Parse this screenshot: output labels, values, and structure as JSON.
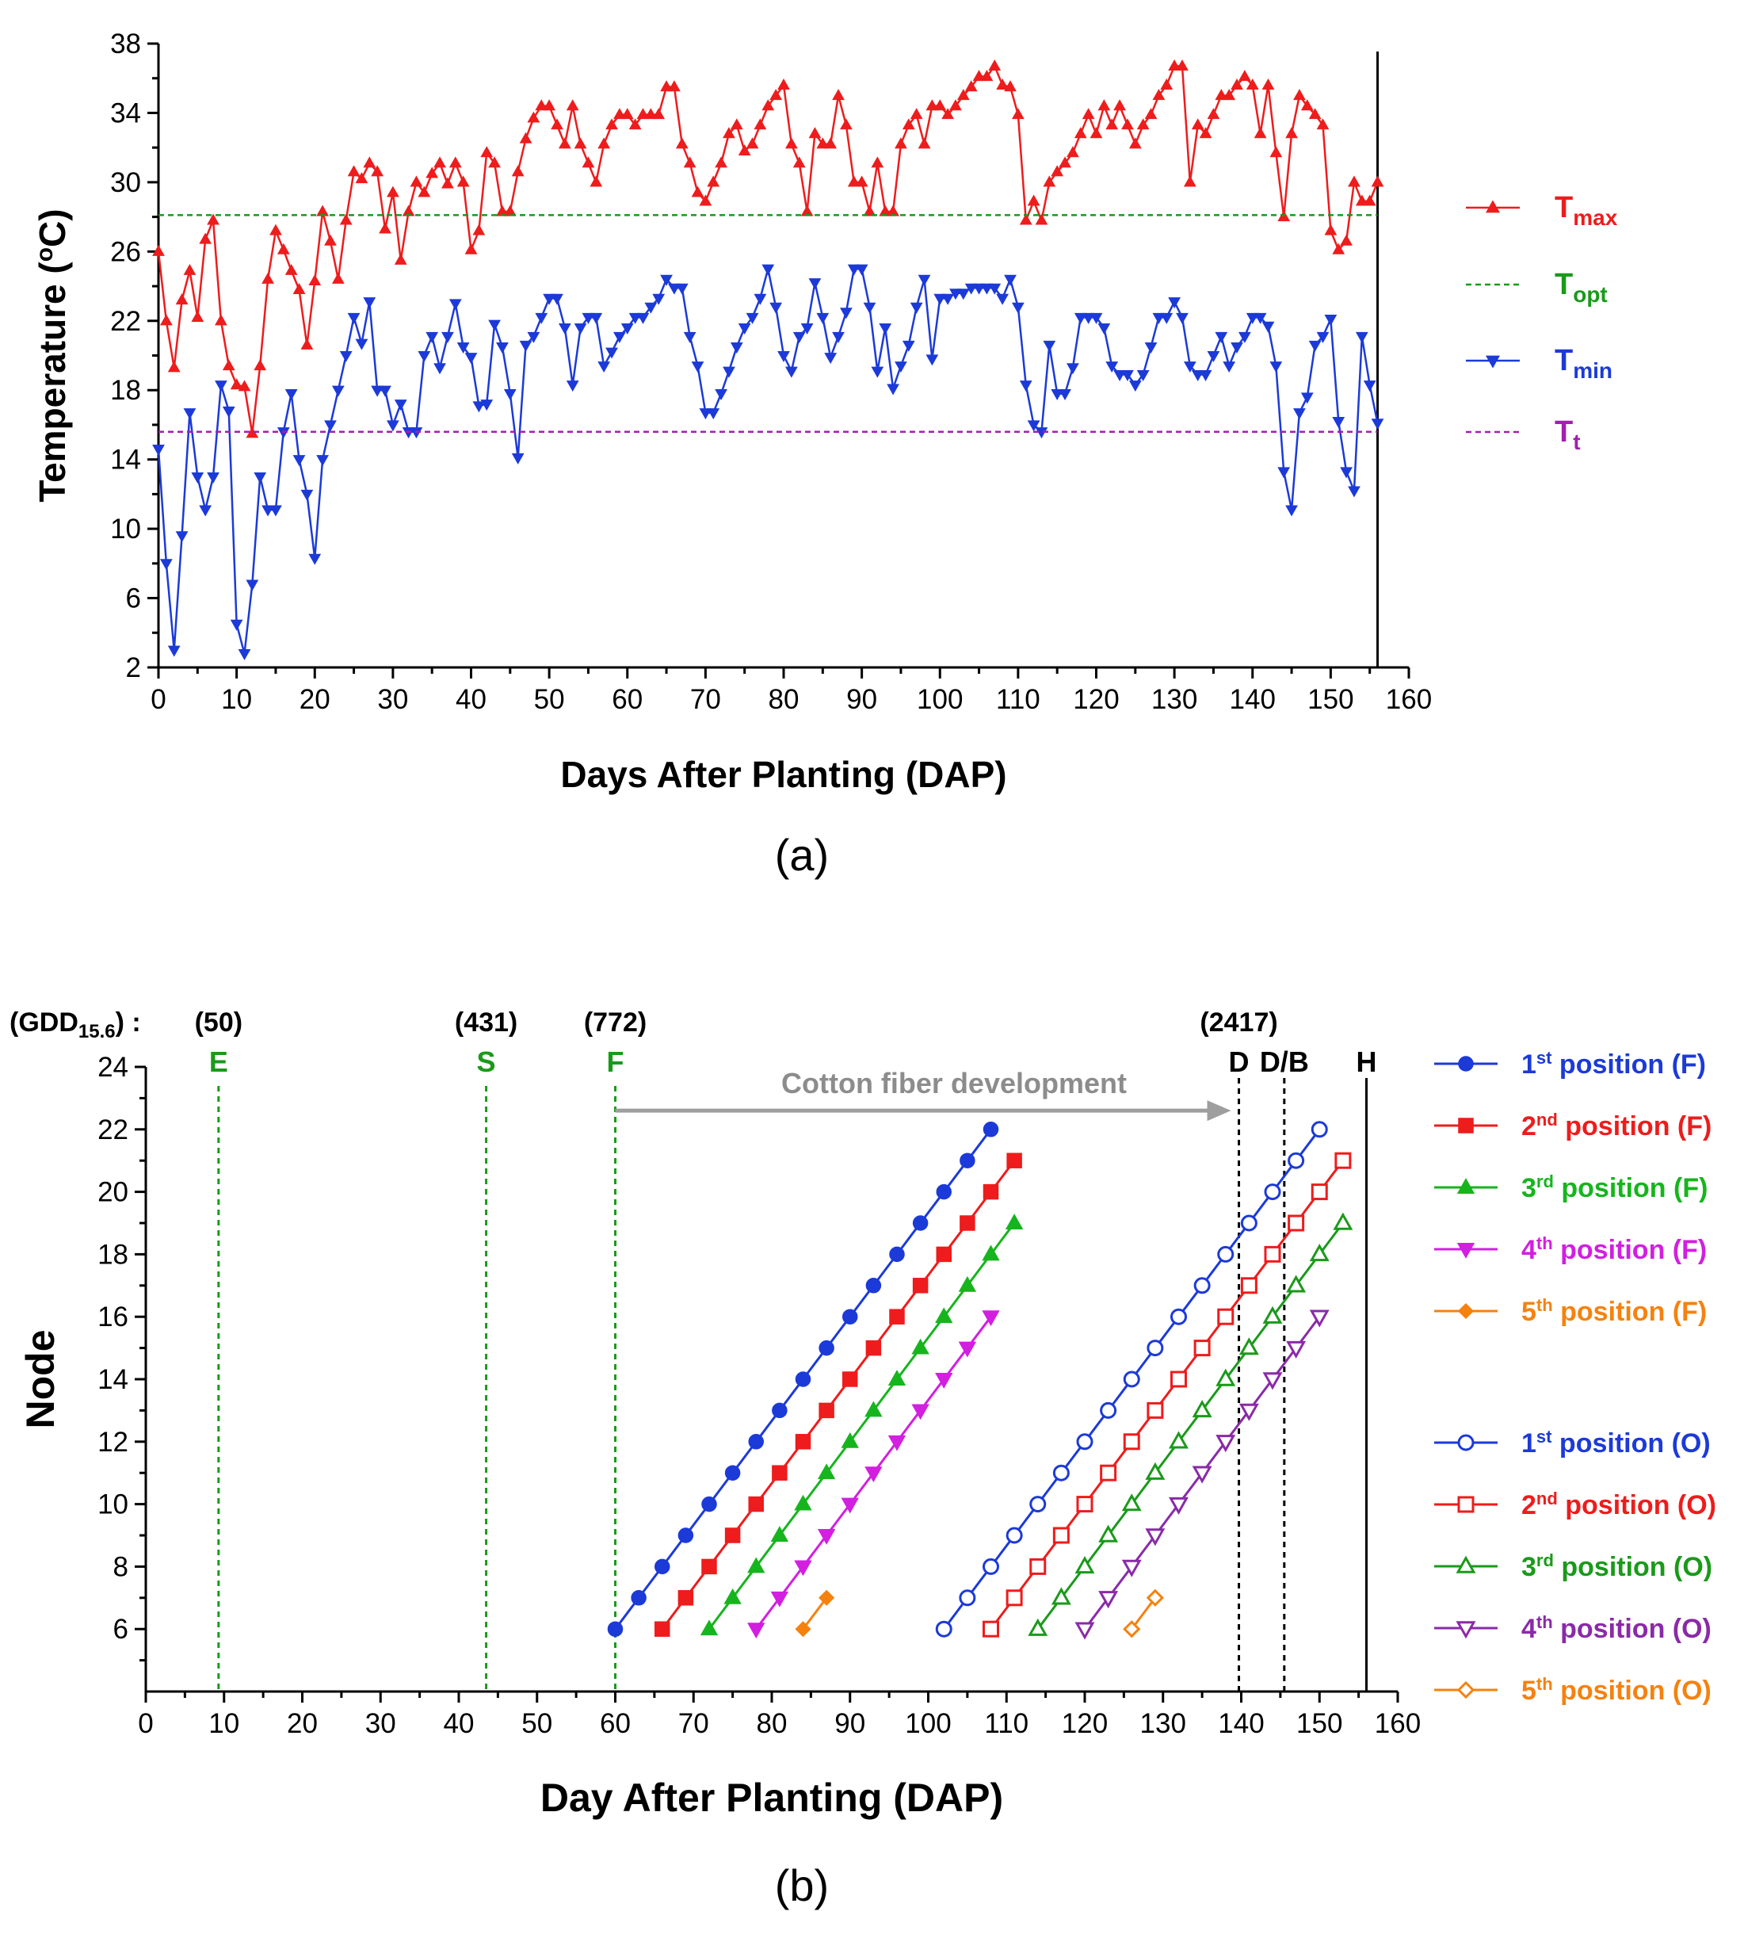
{
  "chart_data": [
    {
      "type": "line",
      "panel_label": "(a)",
      "xlabel": "Days After Planting (DAP)",
      "ylabel_main": "Temperature (",
      "ylabel_sup": "o",
      "ylabel_end": "C)",
      "xlim": [
        0,
        160
      ],
      "ylim": [
        2,
        38
      ],
      "xticks": [
        0,
        10,
        20,
        30,
        40,
        50,
        60,
        70,
        80,
        90,
        100,
        110,
        120,
        130,
        140,
        150,
        160
      ],
      "yticks": [
        2,
        6,
        10,
        14,
        18,
        22,
        26,
        30,
        34,
        38
      ],
      "harvest_line_x": 156,
      "series": [
        {
          "name": "Tmax",
          "label_main": "T",
          "label_sub": "max",
          "color": "#ee1c1c",
          "marker": "triangle-up",
          "values": [
            26,
            22,
            19.3,
            23.2,
            24.9,
            22.2,
            26.7,
            27.8,
            22,
            19.4,
            18.3,
            18.2,
            15.5,
            19.4,
            24.4,
            27.2,
            26.1,
            24.9,
            23.8,
            20.6,
            24.3,
            28.3,
            26.6,
            24.4,
            27.8,
            30.6,
            30.2,
            31.1,
            30.6,
            27.3,
            29.4,
            25.5,
            28.3,
            30,
            29.4,
            30.5,
            31.1,
            29.9,
            31.1,
            30,
            26.1,
            27.2,
            31.7,
            31.1,
            28.3,
            28.3,
            30.6,
            32.5,
            33.7,
            34.4,
            34.4,
            33.3,
            32.2,
            34.4,
            32.2,
            31.1,
            30,
            32.2,
            33.3,
            33.9,
            33.9,
            33.3,
            33.9,
            33.9,
            33.9,
            35.5,
            35.5,
            32.2,
            31.1,
            29.4,
            28.9,
            30,
            31.1,
            32.8,
            33.3,
            31.8,
            32.2,
            33.3,
            34.4,
            35,
            35.6,
            32.2,
            31.1,
            28.3,
            32.8,
            32.2,
            32.2,
            35,
            33.3,
            30,
            30,
            28.3,
            31.1,
            28.3,
            28.3,
            32.2,
            33.3,
            33.9,
            32.2,
            34.4,
            34.4,
            33.9,
            34.4,
            35,
            35.5,
            36.1,
            36.1,
            36.7,
            35.6,
            35.5,
            33.9,
            27.8,
            28.9,
            27.8,
            30,
            30.6,
            31.1,
            31.7,
            32.8,
            33.9,
            32.8,
            34.4,
            33.3,
            34.4,
            33.3,
            32.2,
            33.3,
            33.9,
            35,
            35.6,
            36.7,
            36.7,
            30,
            33.3,
            32.8,
            33.9,
            35,
            35,
            35.6,
            36.1,
            35.6,
            32.8,
            35.6,
            31.7,
            28,
            32.8,
            35,
            34.4,
            33.9,
            33.3,
            27.2,
            26.1,
            26.6,
            30,
            28.9,
            28.9,
            30
          ]
        },
        {
          "name": "Topt",
          "label_main": "T",
          "label_sub": "opt",
          "color": "#1a9a1a",
          "marker": "none",
          "dash": true,
          "value": 28.1
        },
        {
          "name": "Tmin",
          "label_main": "T",
          "label_sub": "min",
          "color": "#1c3ad8",
          "marker": "triangle-down",
          "values": [
            14.6,
            8,
            3,
            9.6,
            16.7,
            13,
            11.1,
            13,
            18.3,
            16.8,
            4.5,
            2.8,
            6.8,
            13,
            11.1,
            11.1,
            15.6,
            17.8,
            14,
            12,
            8.3,
            14,
            16,
            18,
            20,
            22.2,
            20.7,
            23.1,
            18,
            18,
            16,
            17.2,
            15.6,
            15.6,
            20,
            21.1,
            19.3,
            21.1,
            23,
            20.5,
            19.9,
            17.1,
            17.2,
            21.8,
            20.5,
            17.8,
            14.1,
            20.6,
            21.1,
            22.2,
            23.3,
            23.3,
            21.6,
            18.3,
            21.6,
            22.2,
            22.2,
            19.4,
            20.2,
            21.1,
            21.6,
            22.2,
            22.2,
            22.8,
            23.3,
            24.4,
            23.9,
            23.9,
            21.1,
            19.4,
            16.7,
            16.7,
            17.8,
            19.1,
            20.5,
            21.6,
            22.2,
            23.3,
            25,
            22.8,
            20,
            19.1,
            21.1,
            21.6,
            24.2,
            22.2,
            19.9,
            21.1,
            22.5,
            25,
            25,
            22.8,
            19.1,
            21.6,
            18.1,
            19.4,
            20.6,
            22.8,
            24.4,
            19.8,
            23.3,
            23.3,
            23.6,
            23.6,
            23.9,
            23.9,
            23.9,
            23.9,
            23.3,
            24.4,
            22.8,
            18.3,
            16,
            15.6,
            20.6,
            17.8,
            17.8,
            19.3,
            22.2,
            22.2,
            22.2,
            21.6,
            19.4,
            18.9,
            18.9,
            18.3,
            18.9,
            20.5,
            22.2,
            22.2,
            23.1,
            22.2,
            19.4,
            18.9,
            18.9,
            20,
            21.1,
            19.4,
            20.5,
            21.1,
            22.2,
            22.2,
            21.7,
            19.4,
            13.3,
            11.1,
            16.7,
            17.6,
            20.6,
            21.1,
            22.1,
            16.2,
            13.3,
            12.2,
            21.1,
            18.3,
            16.1
          ]
        },
        {
          "name": "Tt",
          "label_main": "T",
          "label_sub": "t",
          "color": "#a21fb0",
          "marker": "none",
          "dash": true,
          "value": 15.6
        }
      ]
    },
    {
      "type": "line",
      "panel_label": "(b)",
      "xlabel": "Day After Planting (DAP)",
      "ylabel": "Node",
      "xlim": [
        0,
        160
      ],
      "ylim": [
        4,
        24
      ],
      "xticks": [
        0,
        10,
        20,
        30,
        40,
        50,
        60,
        70,
        80,
        90,
        100,
        110,
        120,
        130,
        140,
        150,
        160
      ],
      "yticks": [
        6,
        8,
        10,
        12,
        14,
        16,
        18,
        20,
        22,
        24
      ],
      "gdd_label_main": "(GDD",
      "gdd_label_sub": "15.6",
      "gdd_label_end": ") :",
      "events": [
        {
          "label": "E",
          "x": 9.3,
          "gdd": "(50)",
          "color": "#1a9a1a",
          "style": "green-dash"
        },
        {
          "label": "S",
          "x": 43.5,
          "gdd": "(431)",
          "color": "#1a9a1a",
          "style": "green-dash"
        },
        {
          "label": "F",
          "x": 60,
          "gdd": "(772)",
          "color": "#1a9a1a",
          "style": "green-dash"
        },
        {
          "label": "D",
          "x": 139.7,
          "gdd": "(2417)",
          "color": "#000000",
          "style": "black-dash"
        },
        {
          "label": "D/B",
          "x": 145.5,
          "gdd": "",
          "color": "#000000",
          "style": "black-dash"
        },
        {
          "label": "H",
          "x": 156,
          "gdd": "",
          "color": "#000000",
          "style": "solid"
        }
      ],
      "annotation": {
        "text": "Cotton fiber development",
        "x_start": 60,
        "x_end": 139.7,
        "y": 22.6
      },
      "series": [
        {
          "ord": "1",
          "sup": "st",
          "label": " position (F)",
          "color": "#1c3ad8",
          "marker": "circle",
          "filled": true,
          "x0": 60,
          "x1": 108,
          "node0": 6,
          "node1": 22
        },
        {
          "ord": "2",
          "sup": "nd",
          "label": " position (F)",
          "color": "#ee1c1c",
          "marker": "square",
          "filled": true,
          "x0": 66,
          "x1": 111,
          "node0": 6,
          "node1": 21
        },
        {
          "ord": "3",
          "sup": "rd",
          "label": " position (F)",
          "color": "#16b51d",
          "marker": "triangle-up",
          "filled": true,
          "x0": 72,
          "x1": 111,
          "node0": 6,
          "node1": 19
        },
        {
          "ord": "4",
          "sup": "th",
          "label": " position (F)",
          "color": "#d21fe0",
          "marker": "triangle-down",
          "filled": true,
          "x0": 78,
          "x1": 108,
          "node0": 6,
          "node1": 16
        },
        {
          "ord": "5",
          "sup": "th",
          "label": " position (F)",
          "color": "#f5820f",
          "marker": "diamond",
          "filled": true,
          "x0": 84,
          "x1": 87,
          "node0": 6,
          "node1": 7
        },
        {
          "ord": "1",
          "sup": "st",
          "label": " position (O)",
          "color": "#1c3ad8",
          "marker": "circle",
          "filled": false,
          "x0": 102,
          "x1": 150,
          "node0": 6,
          "node1": 22
        },
        {
          "ord": "2",
          "sup": "nd",
          "label": " position (O)",
          "color": "#ee1c1c",
          "marker": "square",
          "filled": false,
          "x0": 108,
          "x1": 153,
          "node0": 6,
          "node1": 21
        },
        {
          "ord": "3",
          "sup": "rd",
          "label": " position (O)",
          "color": "#1a9a1a",
          "marker": "triangle-up",
          "filled": false,
          "x0": 114,
          "x1": 153,
          "node0": 6,
          "node1": 19
        },
        {
          "ord": "4",
          "sup": "th",
          "label": " position (O)",
          "color": "#8a2aa8",
          "marker": "triangle-down",
          "filled": false,
          "x0": 120,
          "x1": 150,
          "node0": 6,
          "node1": 16
        },
        {
          "ord": "5",
          "sup": "th",
          "label": " position (O)",
          "color": "#f5820f",
          "marker": "diamond",
          "filled": false,
          "x0": 126,
          "x1": 129,
          "node0": 6,
          "node1": 7
        }
      ]
    }
  ]
}
